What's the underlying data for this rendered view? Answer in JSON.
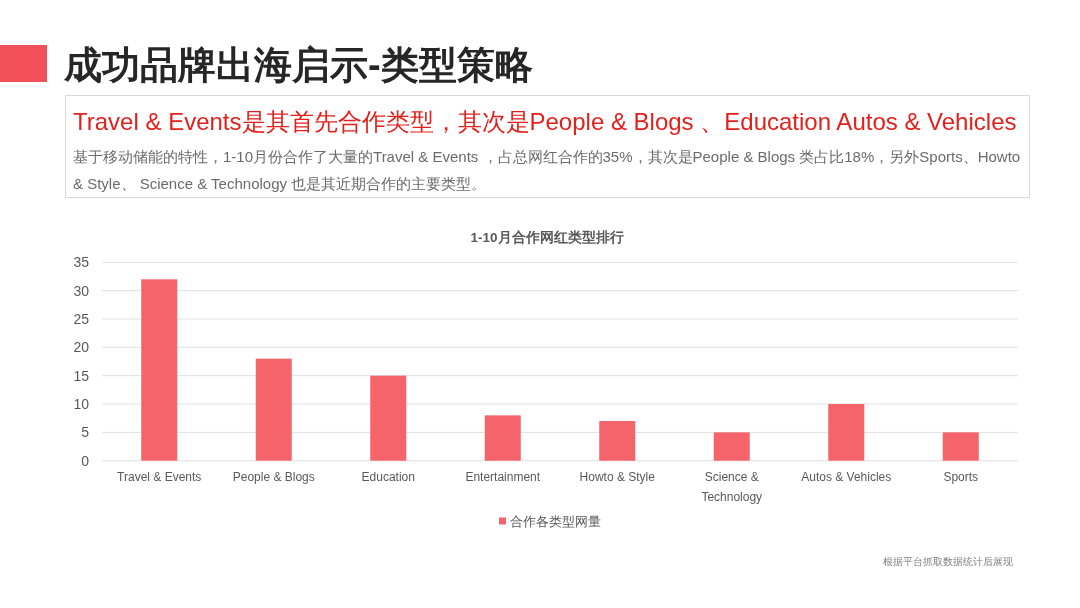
{
  "chart_data": {
    "type": "bar",
    "title": "1-10月合作网红类型排行",
    "annotations": [
      "成功品牌出海启示-类型策略",
      "Travel & Events是其首先合作类型，其次是People & Blogs 、Education Autos & Vehicles",
      "基于移动储能的特性，1-10月份合作了大量的Travel & Events ，占总网红合作的35%，其次是People & Blogs 类占比18%，另外Sports、Howto & Style、 Science & Technology 也是其近期合作的主要类型。",
      "根据平台抓取数据统计后展现"
    ],
    "categories": [
      "Travel & Events",
      "People & Blogs",
      "Education",
      "Entertainment",
      "Howto & Style",
      "Science & Technology",
      "Autos & Vehicles",
      "Sports"
    ],
    "series": [
      {
        "name": "合作各类型网量",
        "color": "#f5636b",
        "values": [
          32,
          18,
          15,
          8,
          7,
          5,
          10,
          5
        ]
      }
    ],
    "ylim": [
      0,
      35
    ],
    "yticks": [
      0,
      5,
      10,
      15,
      20,
      25,
      30,
      35
    ],
    "grid": "y",
    "legend": "bottom"
  }
}
